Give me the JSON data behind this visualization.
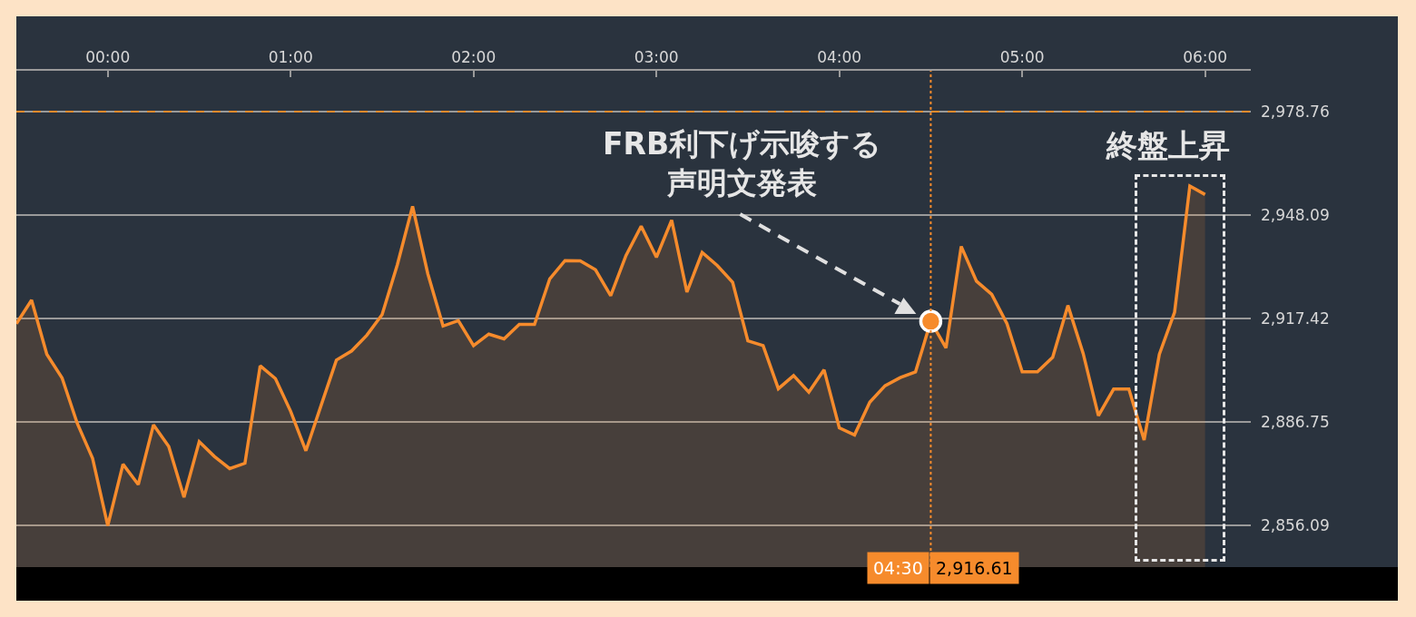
{
  "chart_data": {
    "type": "area",
    "x": [
      -0.5,
      -0.4167,
      -0.3333,
      -0.25,
      -0.1667,
      -0.0833,
      0,
      0.0833,
      0.1667,
      0.25,
      0.3333,
      0.4167,
      0.5,
      0.5833,
      0.6667,
      0.75,
      0.8333,
      0.9167,
      1,
      1.0833,
      1.1667,
      1.25,
      1.3333,
      1.4167,
      1.5,
      1.5833,
      1.6667,
      1.75,
      1.8333,
      1.9167,
      2,
      2.0833,
      2.1667,
      2.25,
      2.3333,
      2.4167,
      2.5,
      2.5833,
      2.6667,
      2.75,
      2.8333,
      2.9167,
      3,
      3.0833,
      3.1667,
      3.25,
      3.3333,
      3.4167,
      3.5,
      3.5833,
      3.6667,
      3.75,
      3.8333,
      3.9167,
      4,
      4.0833,
      4.1667,
      4.25,
      4.3333,
      4.4167,
      4.5,
      4.5833,
      4.6667,
      4.75,
      4.8333,
      4.9167,
      5,
      5.0833,
      5.1667,
      5.25,
      5.3333,
      5.4167,
      5.5,
      5.5833,
      5.6667,
      5.75,
      5.8333,
      5.9167,
      6
    ],
    "series": [
      {
        "color": "#f68b2c",
        "values": [
          2915.9,
          2922.9,
          2906.8,
          2899.8,
          2886.3,
          2876.0,
          2856.0,
          2874.2,
          2868.2,
          2885.9,
          2879.5,
          2864.4,
          2880.9,
          2876.5,
          2872.9,
          2874.5,
          2903.4,
          2899.6,
          2889.9,
          2878.2,
          2891.7,
          2905.1,
          2907.8,
          2912.5,
          2918.6,
          2933.4,
          2950.7,
          2930.7,
          2915.2,
          2916.8,
          2909.4,
          2912.8,
          2911.4,
          2915.7,
          2915.7,
          2929.2,
          2934.6,
          2934.5,
          2931.9,
          2924.2,
          2936.1,
          2944.8,
          2935.6,
          2946.6,
          2925.3,
          2937.0,
          2933.1,
          2928.2,
          2910.8,
          2909.4,
          2896.6,
          2900.5,
          2895.6,
          2902.2,
          2885.0,
          2882.9,
          2892.6,
          2897.5,
          2899.9,
          2901.6,
          2916.6,
          2908.7,
          2938.8,
          2928.5,
          2924.6,
          2915.9,
          2901.6,
          2901.6,
          2905.9,
          2921.3,
          2907.1,
          2888.6,
          2896.5,
          2896.5,
          2881.4,
          2906.8,
          2919.3,
          2956.7,
          2954.2
        ]
      }
    ],
    "xlim": [
      -0.5,
      6.25
    ],
    "xticks": [
      {
        "value": 0,
        "label": "00:00"
      },
      {
        "value": 1,
        "label": "01:00"
      },
      {
        "value": 2,
        "label": "02:00"
      },
      {
        "value": 3,
        "label": "03:00"
      },
      {
        "value": 4,
        "label": "04:00"
      },
      {
        "value": 5,
        "label": "05:00"
      },
      {
        "value": 6,
        "label": "06:00"
      }
    ],
    "ylim": [
      2843.7,
      2990.9
    ],
    "yticks": [
      {
        "value": 2856.09,
        "label": "2,856.09"
      },
      {
        "value": 2886.75,
        "label": "2,886.75"
      },
      {
        "value": 2917.42,
        "label": "2,917.42"
      },
      {
        "value": 2948.09,
        "label": "2,948.09"
      },
      {
        "value": 2978.76,
        "label": "2,978.76"
      }
    ],
    "ref_lines": [
      {
        "axis": "y",
        "value": 2978.76,
        "color": "#f68b2c",
        "line_style": "dashed"
      },
      {
        "axis": "x",
        "value": 4.5,
        "label": "04:30",
        "color": "#f68b2c",
        "line_style": "dotted"
      }
    ],
    "annotations": [
      "FRB利下げ示唆する声明文発表",
      "2,916.61",
      "終盤上昇"
    ],
    "grid": "y",
    "marker": "none",
    "line_style": "solid"
  }
}
